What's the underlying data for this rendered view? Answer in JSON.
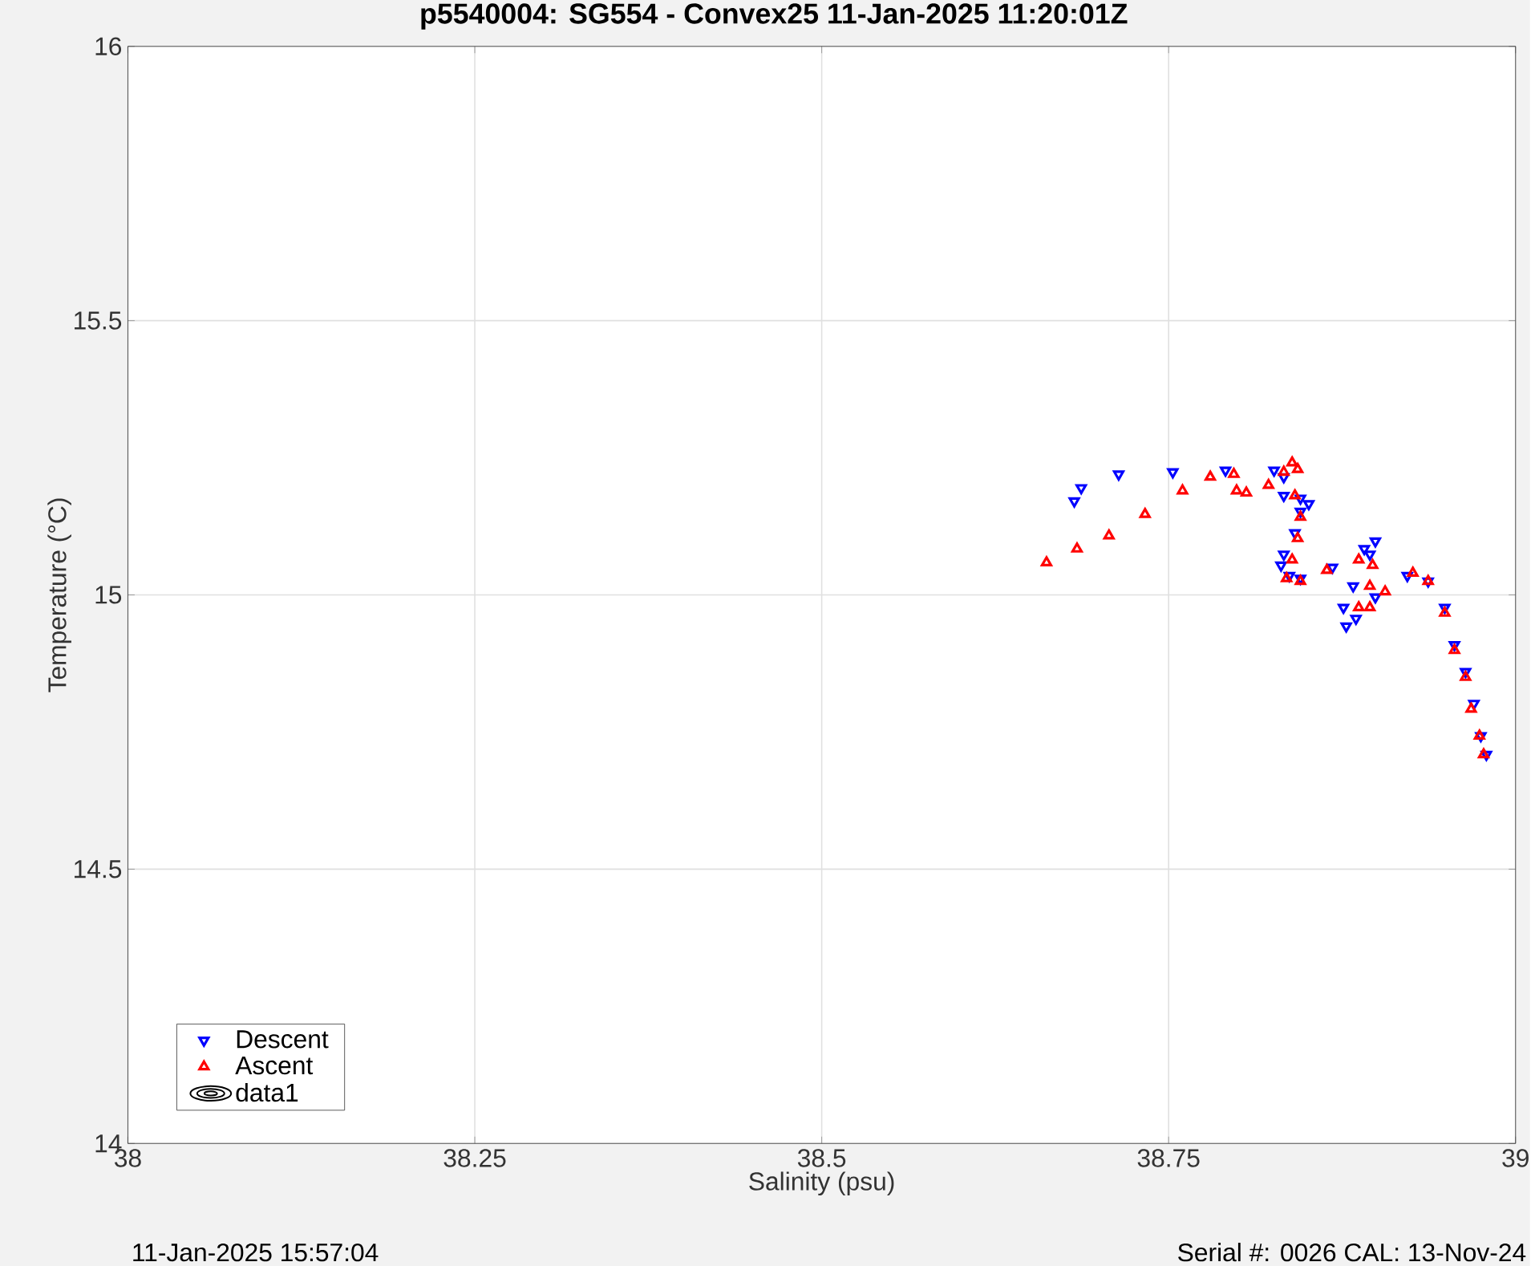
{
  "chart_data": {
    "type": "scatter",
    "title": "p5540004: SG554 - Convex25 11-Jan-2025 11:20:01Z",
    "xlabel": "Salinity (psu)",
    "ylabel": "Temperature (°C)",
    "xlim": [
      38,
      39
    ],
    "xticks": [
      38,
      38.25,
      38.5,
      38.75,
      39
    ],
    "ylim": [
      14,
      16
    ],
    "yticks": [
      14,
      14.5,
      15,
      15.5,
      16
    ],
    "grid": true,
    "legend": "bottom left",
    "annotations": [
      "11-Jan-2025 15:57:04",
      "Serial #: 0026 CAL: 13-Nov-24"
    ],
    "series": [
      {
        "name": "Descent",
        "color": "#0000ff",
        "marker": "triangle_down",
        "x": [
          38.682,
          38.687,
          38.714,
          38.753,
          38.791,
          38.826,
          38.833,
          38.833,
          38.845,
          38.851,
          38.845,
          38.841,
          38.833,
          38.831,
          38.837,
          38.845,
          38.868,
          38.891,
          38.899,
          38.895,
          38.883,
          38.876,
          38.878,
          38.885,
          38.899,
          38.922,
          38.937,
          38.949,
          38.956,
          38.964,
          38.97,
          38.975,
          38.979
        ],
        "values": [
          15.171,
          15.195,
          15.22,
          15.224,
          15.227,
          15.227,
          15.215,
          15.181,
          15.176,
          15.166,
          15.152,
          15.113,
          15.074,
          15.054,
          15.035,
          15.03,
          15.05,
          15.084,
          15.098,
          15.074,
          15.016,
          14.977,
          14.943,
          14.957,
          14.996,
          15.035,
          15.025,
          14.977,
          14.909,
          14.86,
          14.802,
          14.743,
          14.709
        ]
      },
      {
        "name": "Ascent",
        "color": "#ff0000",
        "marker": "triangle",
        "x": [
          38.662,
          38.684,
          38.707,
          38.733,
          38.76,
          38.78,
          38.797,
          38.799,
          38.806,
          38.822,
          38.833,
          38.839,
          38.843,
          38.841,
          38.845,
          38.843,
          38.839,
          38.835,
          38.845,
          38.864,
          38.887,
          38.897,
          38.895,
          38.887,
          38.895,
          38.906,
          38.926,
          38.937,
          38.949,
          38.956,
          38.964,
          38.968,
          38.974,
          38.977
        ],
        "values": [
          15.059,
          15.084,
          15.108,
          15.147,
          15.19,
          15.215,
          15.22,
          15.19,
          15.186,
          15.2,
          15.224,
          15.241,
          15.229,
          15.181,
          15.142,
          15.103,
          15.064,
          15.03,
          15.025,
          15.045,
          15.064,
          15.054,
          15.016,
          14.977,
          14.977,
          15.006,
          15.04,
          15.025,
          14.967,
          14.899,
          14.85,
          14.792,
          14.743,
          14.709
        ]
      },
      {
        "name": "data1",
        "type": "other",
        "color": "#000000"
      }
    ]
  }
}
